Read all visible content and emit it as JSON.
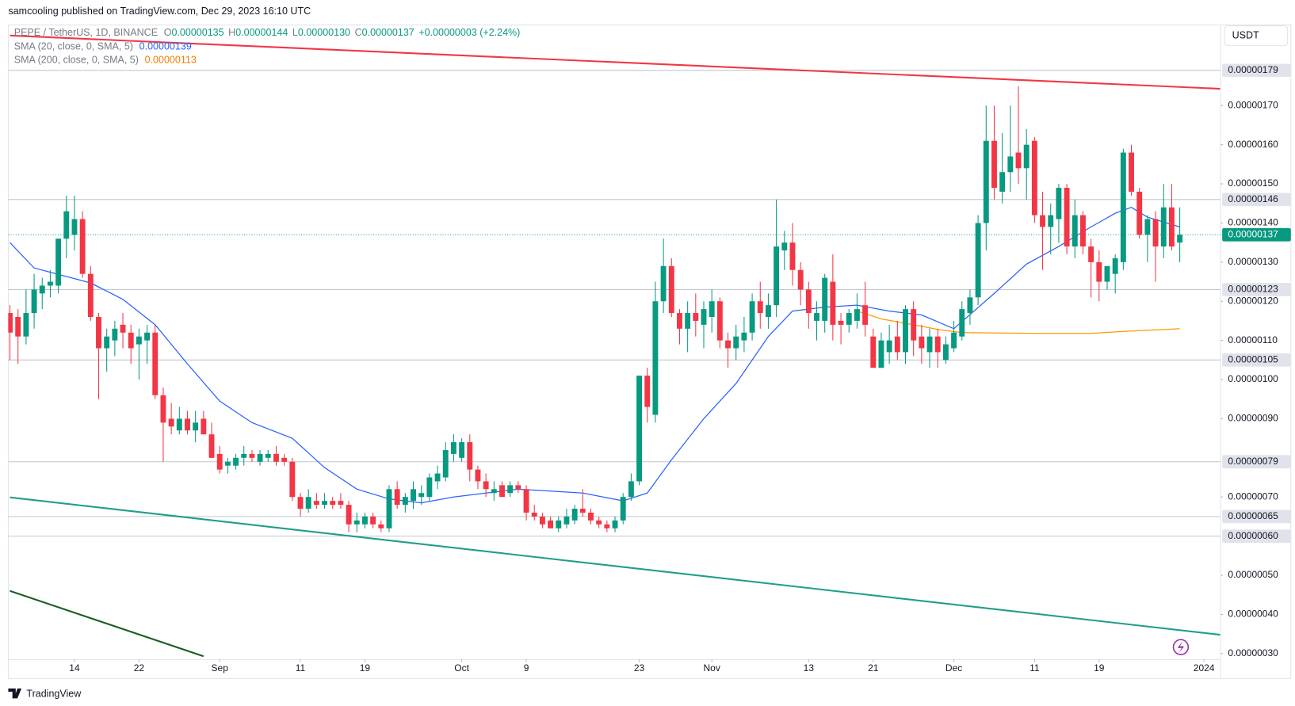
{
  "chart_data": {
    "type": "candlestick",
    "title": "samcooling published on TradingView.com, Dec 29, 2023 16:10 UTC",
    "legend": {
      "symbol": "PEPE / TetherUS, 1D, BINANCE",
      "ohlc": [
        {
          "label": "O",
          "value": "0.00000135"
        },
        {
          "label": "H",
          "value": "0.00000144"
        },
        {
          "label": "L",
          "value": "0.00000130"
        },
        {
          "label": "C",
          "value": "0.00000137"
        }
      ],
      "change": "+0.00000003 (+2.24%)"
    },
    "currency": "USDT",
    "brand": "TradingView",
    "up_color": "#089981",
    "down_color": "#f23645",
    "x": [
      "2023-08-06",
      "2023-08-07",
      "2023-08-08",
      "2023-08-09",
      "2023-08-10",
      "2023-08-11",
      "2023-08-12",
      "2023-08-13",
      "2023-08-14",
      "2023-08-15",
      "2023-08-16",
      "2023-08-17",
      "2023-08-18",
      "2023-08-19",
      "2023-08-20",
      "2023-08-21",
      "2023-08-22",
      "2023-08-23",
      "2023-08-24",
      "2023-08-25",
      "2023-08-26",
      "2023-08-27",
      "2023-08-28",
      "2023-08-29",
      "2023-08-30",
      "2023-08-31",
      "2023-09-01",
      "2023-09-02",
      "2023-09-03",
      "2023-09-04",
      "2023-09-05",
      "2023-09-06",
      "2023-09-07",
      "2023-09-08",
      "2023-09-09",
      "2023-09-10",
      "2023-09-11",
      "2023-09-12",
      "2023-09-13",
      "2023-09-14",
      "2023-09-15",
      "2023-09-16",
      "2023-09-17",
      "2023-09-18",
      "2023-09-19",
      "2023-09-20",
      "2023-09-21",
      "2023-09-22",
      "2023-09-23",
      "2023-09-24",
      "2023-09-25",
      "2023-09-26",
      "2023-09-27",
      "2023-09-28",
      "2023-09-29",
      "2023-09-30",
      "2023-10-01",
      "2023-10-02",
      "2023-10-03",
      "2023-10-04",
      "2023-10-05",
      "2023-10-06",
      "2023-10-07",
      "2023-10-08",
      "2023-10-09",
      "2023-10-10",
      "2023-10-11",
      "2023-10-12",
      "2023-10-13",
      "2023-10-14",
      "2023-10-15",
      "2023-10-16",
      "2023-10-17",
      "2023-10-18",
      "2023-10-19",
      "2023-10-20",
      "2023-10-21",
      "2023-10-22",
      "2023-10-23",
      "2023-10-24",
      "2023-10-25",
      "2023-10-26",
      "2023-10-27",
      "2023-10-28",
      "2023-10-29",
      "2023-10-30",
      "2023-10-31",
      "2023-11-01",
      "2023-11-02",
      "2023-11-03",
      "2023-11-04",
      "2023-11-05",
      "2023-11-06",
      "2023-11-07",
      "2023-11-08",
      "2023-11-09",
      "2023-11-10",
      "2023-11-11",
      "2023-11-12",
      "2023-11-13",
      "2023-11-14",
      "2023-11-15",
      "2023-11-16",
      "2023-11-17",
      "2023-11-18",
      "2023-11-19",
      "2023-11-20",
      "2023-11-21",
      "2023-11-22",
      "2023-11-23",
      "2023-11-24",
      "2023-11-25",
      "2023-11-26",
      "2023-11-27",
      "2023-11-28",
      "2023-11-29",
      "2023-11-30",
      "2023-12-01",
      "2023-12-02",
      "2023-12-03",
      "2023-12-04",
      "2023-12-05",
      "2023-12-06",
      "2023-12-07",
      "2023-12-08",
      "2023-12-09",
      "2023-12-10",
      "2023-12-11",
      "2023-12-12",
      "2023-12-13",
      "2023-12-14",
      "2023-12-15",
      "2023-12-16",
      "2023-12-17",
      "2023-12-18",
      "2023-12-19",
      "2023-12-20",
      "2023-12-21",
      "2023-12-22",
      "2023-12-23",
      "2023-12-24",
      "2023-12-25",
      "2023-12-26",
      "2023-12-27",
      "2023-12-28",
      "2023-12-29"
    ],
    "open": [
      1.17e-06,
      1.16e-06,
      1.11e-06,
      1.17e-06,
      1.22e-06,
      1.24e-06,
      1.24e-06,
      1.36e-06,
      1.37e-06,
      1.41e-06,
      1.27e-06,
      1.16e-06,
      1.08e-06,
      1.1e-06,
      1.14e-06,
      1.12e-06,
      1.09e-06,
      1.1e-06,
      1.12e-06,
      9.6e-07,
      9e-07,
      8.7e-07,
      9e-07,
      8.7e-07,
      9e-07,
      8.6e-07,
      8.1e-07,
      7.8e-07,
      7.8e-07,
      8e-07,
      8.1e-07,
      7.9e-07,
      8e-07,
      8.1e-07,
      8e-07,
      7.9e-07,
      7e-07,
      6.7e-07,
      6.9e-07,
      6.8e-07,
      6.9e-07,
      6.9e-07,
      6.8e-07,
      6.3e-07,
      6.3e-07,
      6.5e-07,
      6.3e-07,
      6.2e-07,
      7.2e-07,
      6.8e-07,
      6.9e-07,
      7e-07,
      7e-07,
      7.4e-07,
      7.5e-07,
      8.1e-07,
      8e-07,
      8.4e-07,
      7.7e-07,
      7.4e-07,
      7.1e-07,
      7.3e-07,
      7.1e-07,
      7.3e-07,
      7.2e-07,
      6.6e-07,
      6.5e-07,
      6.4e-07,
      6.2e-07,
      6.3e-07,
      6.4e-07,
      6.7e-07,
      6.6e-07,
      6.4e-07,
      6.3e-07,
      6.2e-07,
      6.4e-07,
      7e-07,
      7.4e-07,
      1.01e-06,
      9.1e-07,
      1.2e-06,
      1.29e-06,
      1.17e-06,
      1.13e-06,
      1.17e-06,
      1.14e-06,
      1.16e-06,
      1.2e-06,
      1.1e-06,
      1.08e-06,
      1.1e-06,
      1.12e-06,
      1.2e-06,
      1.16e-06,
      1.19e-06,
      1.33e-06,
      1.35e-06,
      1.28e-06,
      1.23e-06,
      1.15e-06,
      1.15e-06,
      1.25e-06,
      1.15e-06,
      1.14e-06,
      1.15e-06,
      1.19e-06,
      1.11e-06,
      1.03e-06,
      1.07e-06,
      1.11e-06,
      1.07e-06,
      1.18e-06,
      1.11e-06,
      1.07e-06,
      1.11e-06,
      1.05e-06,
      1.08e-06,
      1.11e-06,
      1.17e-06,
      1.21e-06,
      1.4e-06,
      1.61e-06,
      1.48e-06,
      1.53e-06,
      1.58e-06,
      1.54e-06,
      1.61e-06,
      1.42e-06,
      1.39e-06,
      1.41e-06,
      1.49e-06,
      1.34e-06,
      1.42e-06,
      1.34e-06,
      1.3e-06,
      1.25e-06,
      1.27e-06,
      1.3e-06,
      1.58e-06,
      1.48e-06,
      1.37e-06,
      1.41e-06,
      1.34e-06,
      1.44e-06,
      1.35e-06
    ],
    "high": [
      1.19e-06,
      1.18e-06,
      1.23e-06,
      1.27e-06,
      1.26e-06,
      1.28e-06,
      1.36e-06,
      1.47e-06,
      1.47e-06,
      1.43e-06,
      1.29e-06,
      1.17e-06,
      1.13e-06,
      1.15e-06,
      1.17e-06,
      1.14e-06,
      1.13e-06,
      1.14e-06,
      1.14e-06,
      9.8e-07,
      9.4e-07,
      9.3e-07,
      9.2e-07,
      9.2e-07,
      9.2e-07,
      8.9e-07,
      8.3e-07,
      8e-07,
      8.1e-07,
      8.3e-07,
      8.2e-07,
      8.2e-07,
      8.2e-07,
      8.3e-07,
      8.1e-07,
      8e-07,
      7.1e-07,
      7.2e-07,
      7.1e-07,
      7.1e-07,
      7e-07,
      7.1e-07,
      6.9e-07,
      6.6e-07,
      6.6e-07,
      6.6e-07,
      6.4e-07,
      7.3e-07,
      7.4e-07,
      7.1e-07,
      7.4e-07,
      7.3e-07,
      7.6e-07,
      7.8e-07,
      8.4e-07,
      8.6e-07,
      8.5e-07,
      8.6e-07,
      7.8e-07,
      7.6e-07,
      7.4e-07,
      7.4e-07,
      7.4e-07,
      7.4e-07,
      7.3e-07,
      6.8e-07,
      6.6e-07,
      6.5e-07,
      6.5e-07,
      6.7e-07,
      6.8e-07,
      7.2e-07,
      6.7e-07,
      6.5e-07,
      6.4e-07,
      6.5e-07,
      7.1e-07,
      7.6e-07,
      1.01e-06,
      1.03e-06,
      1.25e-06,
      1.36e-06,
      1.31e-06,
      1.18e-06,
      1.2e-06,
      1.22e-06,
      1.2e-06,
      1.23e-06,
      1.21e-06,
      1.12e-06,
      1.14e-06,
      1.16e-06,
      1.22e-06,
      1.25e-06,
      1.22e-06,
      1.46e-06,
      1.38e-06,
      1.4e-06,
      1.3e-06,
      1.25e-06,
      1.2e-06,
      1.27e-06,
      1.32e-06,
      1.17e-06,
      1.18e-06,
      1.22e-06,
      1.25e-06,
      1.13e-06,
      1.12e-06,
      1.14e-06,
      1.15e-06,
      1.19e-06,
      1.2e-06,
      1.14e-06,
      1.13e-06,
      1.13e-06,
      1.11e-06,
      1.15e-06,
      1.2e-06,
      1.23e-06,
      1.42e-06,
      1.7e-06,
      1.7e-06,
      1.63e-06,
      1.7e-06,
      1.75e-06,
      1.64e-06,
      1.62e-06,
      1.48e-06,
      1.45e-06,
      1.5e-06,
      1.5e-06,
      1.46e-06,
      1.43e-06,
      1.36e-06,
      1.33e-06,
      1.29e-06,
      1.32e-06,
      1.59e-06,
      1.6e-06,
      1.49e-06,
      1.42e-06,
      1.43e-06,
      1.5e-06,
      1.5e-06,
      1.44e-06
    ],
    "low": [
      1.05e-06,
      1.04e-06,
      1.09e-06,
      1.13e-06,
      1.18e-06,
      1.21e-06,
      1.22e-06,
      1.31e-06,
      1.33e-06,
      1.26e-06,
      1.15e-06,
      9.5e-07,
      1.02e-06,
      1.06e-06,
      1.08e-06,
      1.04e-06,
      1e-06,
      1.04e-06,
      9.5e-07,
      7.9e-07,
      8.6e-07,
      8.6e-07,
      8.6e-07,
      8.4e-07,
      8.6e-07,
      8e-07,
      7.6e-07,
      7.6e-07,
      7.7e-07,
      7.8e-07,
      7.9e-07,
      7.8e-07,
      7.9e-07,
      7.8e-07,
      7.8e-07,
      6.9e-07,
      6.5e-07,
      6.6e-07,
      6.7e-07,
      6.7e-07,
      6.7e-07,
      6.7e-07,
      6.1e-07,
      6.1e-07,
      6.2e-07,
      6.2e-07,
      6.1e-07,
      6.1e-07,
      6.7e-07,
      6.6e-07,
      6.7e-07,
      6.8e-07,
      6.9e-07,
      7.2e-07,
      7.4e-07,
      7.9e-07,
      7.9e-07,
      7.4e-07,
      7.2e-07,
      7e-07,
      6.9e-07,
      7e-07,
      7e-07,
      7.1e-07,
      6.4e-07,
      6.4e-07,
      6.2e-07,
      6.2e-07,
      6.1e-07,
      6.2e-07,
      6.3e-07,
      6.5e-07,
      6.3e-07,
      6.2e-07,
      6.1e-07,
      6.1e-07,
      6.3e-07,
      6.9e-07,
      7.3e-07,
      8.9e-07,
      8.9e-07,
      1.17e-06,
      1.16e-06,
      1.09e-06,
      1.07e-06,
      1.11e-06,
      1.08e-06,
      1.12e-06,
      1.08e-06,
      1.03e-06,
      1.05e-06,
      1.07e-06,
      1.1e-06,
      1.13e-06,
      1.13e-06,
      1.16e-06,
      1.28e-06,
      1.24e-06,
      1.19e-06,
      1.13e-06,
      1.1e-06,
      1.12e-06,
      1.1e-06,
      1.09e-06,
      1.12e-06,
      1.13e-06,
      1.11e-06,
      1.03e-06,
      1.03e-06,
      1.04e-06,
      1.05e-06,
      1.04e-06,
      1.06e-06,
      1.04e-06,
      1.03e-06,
      1.03e-06,
      1.04e-06,
      1.07e-06,
      1.1e-06,
      1.14e-06,
      1.19e-06,
      1.33e-06,
      1.46e-06,
      1.45e-06,
      1.48e-06,
      1.5e-06,
      1.46e-06,
      1.4e-06,
      1.28e-06,
      1.32e-06,
      1.35e-06,
      1.32e-06,
      1.31e-06,
      1.32e-06,
      1.21e-06,
      1.2e-06,
      1.23e-06,
      1.22e-06,
      1.28e-06,
      1.47e-06,
      1.36e-06,
      1.3e-06,
      1.25e-06,
      1.31e-06,
      1.33e-06,
      1.3e-06
    ],
    "close": [
      1.12e-06,
      1.11e-06,
      1.17e-06,
      1.23e-06,
      1.24e-06,
      1.25e-06,
      1.36e-06,
      1.43e-06,
      1.41e-06,
      1.27e-06,
      1.16e-06,
      1.08e-06,
      1.11e-06,
      1.13e-06,
      1.12e-06,
      1.08e-06,
      1.11e-06,
      1.12e-06,
      9.6e-07,
      8.9e-07,
      8.8e-07,
      9e-07,
      8.7e-07,
      8.9e-07,
      8.6e-07,
      8e-07,
      7.7e-07,
      7.9e-07,
      8e-07,
      8.1e-07,
      8e-07,
      8.1e-07,
      8.1e-07,
      7.9e-07,
      7.9e-07,
      7e-07,
      6.7e-07,
      7e-07,
      6.8e-07,
      6.9e-07,
      6.8e-07,
      6.8e-07,
      6.3e-07,
      6.4e-07,
      6.5e-07,
      6.3e-07,
      6.2e-07,
      7.2e-07,
      6.8e-07,
      7e-07,
      7.2e-07,
      7.1e-07,
      7.5e-07,
      7.6e-07,
      8.2e-07,
      8.4e-07,
      8.4e-07,
      7.7e-07,
      7.4e-07,
      7.2e-07,
      7.2e-07,
      7e-07,
      7.3e-07,
      7.2e-07,
      6.6e-07,
      6.5e-07,
      6.3e-07,
      6.2e-07,
      6.4e-07,
      6.5e-07,
      6.7e-07,
      6.6e-07,
      6.4e-07,
      6.3e-07,
      6.2e-07,
      6.4e-07,
      7e-07,
      7.4e-07,
      1.01e-06,
      9.3e-07,
      1.2e-06,
      1.29e-06,
      1.17e-06,
      1.13e-06,
      1.17e-06,
      1.15e-06,
      1.18e-06,
      1.2e-06,
      1.1e-06,
      1.08e-06,
      1.11e-06,
      1.12e-06,
      1.2e-06,
      1.17e-06,
      1.19e-06,
      1.34e-06,
      1.35e-06,
      1.28e-06,
      1.23e-06,
      1.17e-06,
      1.17e-06,
      1.26e-06,
      1.14e-06,
      1.14e-06,
      1.17e-06,
      1.18e-06,
      1.14e-06,
      1.03e-06,
      1.1e-06,
      1.1e-06,
      1.07e-06,
      1.18e-06,
      1.1e-06,
      1.08e-06,
      1.11e-06,
      1.07e-06,
      1.09e-06,
      1.12e-06,
      1.18e-06,
      1.21e-06,
      1.4e-06,
      1.61e-06,
      1.49e-06,
      1.53e-06,
      1.57e-06,
      1.54e-06,
      1.6e-06,
      1.42e-06,
      1.39e-06,
      1.42e-06,
      1.49e-06,
      1.34e-06,
      1.42e-06,
      1.34e-06,
      1.3e-06,
      1.25e-06,
      1.29e-06,
      1.31e-06,
      1.58e-06,
      1.48e-06,
      1.37e-06,
      1.41e-06,
      1.34e-06,
      1.44e-06,
      1.34e-06,
      1.37e-06
    ],
    "indicators": [
      {
        "name": "SMA (20, close, 0, SMA, 5)",
        "color": "#2962ff",
        "value_label": "0.00000139",
        "x": [
          "2023-08-06",
          "2023-08-09",
          "2023-08-16",
          "2023-08-20",
          "2023-08-24",
          "2023-08-28",
          "2023-09-01",
          "2023-09-05",
          "2023-09-10",
          "2023-09-14",
          "2023-09-18",
          "2023-09-22",
          "2023-09-26",
          "2023-09-30",
          "2023-10-04",
          "2023-10-08",
          "2023-10-12",
          "2023-10-16",
          "2023-10-21",
          "2023-10-24",
          "2023-10-27",
          "2023-10-31",
          "2023-11-04",
          "2023-11-08",
          "2023-11-11",
          "2023-11-15",
          "2023-11-19",
          "2023-11-23",
          "2023-11-27",
          "2023-12-01",
          "2023-12-06",
          "2023-12-10",
          "2023-12-14",
          "2023-12-18",
          "2023-12-21",
          "2023-12-23",
          "2023-12-25",
          "2023-12-29"
        ],
        "values": [
          1.35e-06,
          1.285e-06,
          1.247e-06,
          1.205e-06,
          1.14e-06,
          1.04e-06,
          9.45e-07,
          8.9e-07,
          8.5e-07,
          7.75e-07,
          7.2e-07,
          6.95e-07,
          6.85e-07,
          7e-07,
          7.1e-07,
          7.2e-07,
          7.15e-07,
          7.1e-07,
          6.9e-07,
          7.1e-07,
          7.95e-07,
          9e-07,
          9.9e-07,
          1.11e-06,
          1.175e-06,
          1.185e-06,
          1.19e-06,
          1.175e-06,
          1.165e-06,
          1.13e-06,
          1.22e-06,
          1.295e-06,
          1.34e-06,
          1.39e-06,
          1.425e-06,
          1.44e-06,
          1.415e-06,
          1.39e-06
        ]
      },
      {
        "name": "SMA (200, close, 0, SMA, 5)",
        "color": "#ff9800",
        "value_label": "0.00000113",
        "x": [
          "2023-11-19",
          "2023-11-22",
          "2023-11-26",
          "2023-11-29",
          "2023-12-02",
          "2023-12-11",
          "2023-12-18",
          "2023-12-22",
          "2023-12-29"
        ],
        "values": [
          1.175e-06,
          1.155e-06,
          1.14e-06,
          1.128e-06,
          1.12e-06,
          1.118e-06,
          1.118e-06,
          1.123e-06,
          1.13e-06
        ]
      }
    ],
    "trendlines": [
      {
        "color": "#f23645",
        "x": [
          "2023-08-06",
          "2024-01-03"
        ],
        "values": [
          1.879e-06,
          1.743e-06
        ]
      },
      {
        "color": "#1f9e89",
        "x": [
          "2023-08-06",
          "2024-01-03"
        ],
        "values": [
          6.99e-07,
          3.48e-07
        ]
      },
      {
        "color": "#1b5e20",
        "x": [
          "2023-08-06",
          "2023-08-30"
        ],
        "values": [
          4.6e-07,
          2.93e-07
        ]
      }
    ],
    "price_levels": [
      {
        "value": 1.79e-06,
        "label": "0.00000179"
      },
      {
        "value": 1.46e-06,
        "label": "0.00000146"
      },
      {
        "value": 1.23e-06,
        "label": "0.00000123"
      },
      {
        "value": 1.05e-06,
        "label": "0.00000105"
      },
      {
        "value": 7.9e-07,
        "label": "0.00000079"
      },
      {
        "value": 6.5e-07,
        "label": "0.00000065"
      },
      {
        "value": 6e-07,
        "label": "0.00000060"
      }
    ],
    "last_price": {
      "value": 1.37e-06,
      "label": "0.00000137"
    },
    "xlim": [
      "2023-08-06",
      "2024-01-03"
    ],
    "xticks": [
      {
        "value": "2023-08-14",
        "label": "14"
      },
      {
        "value": "2023-08-22",
        "label": "22"
      },
      {
        "value": "2023-09-01",
        "label": "Sep"
      },
      {
        "value": "2023-09-11",
        "label": "11"
      },
      {
        "value": "2023-09-19",
        "label": "19"
      },
      {
        "value": "2023-10-01",
        "label": "Oct"
      },
      {
        "value": "2023-10-09",
        "label": "9"
      },
      {
        "value": "2023-10-23",
        "label": "23"
      },
      {
        "value": "2023-11-01",
        "label": "Nov"
      },
      {
        "value": "2023-11-13",
        "label": "13"
      },
      {
        "value": "2023-11-21",
        "label": "21"
      },
      {
        "value": "2023-12-01",
        "label": "Dec"
      },
      {
        "value": "2023-12-11",
        "label": "11"
      },
      {
        "value": "2023-12-19",
        "label": "19"
      },
      {
        "value": "2024-01-01",
        "label": "2024"
      }
    ],
    "ylim": [
      2.847e-07,
      1.906e-06
    ],
    "yticks": [
      {
        "value": 1.7e-06,
        "label": "0.00000170"
      },
      {
        "value": 1.6e-06,
        "label": "0.00000160"
      },
      {
        "value": 1.5e-06,
        "label": "0.00000150"
      },
      {
        "value": 1.4e-06,
        "label": "0.00000140"
      },
      {
        "value": 1.3e-06,
        "label": "0.00000130"
      },
      {
        "value": 1.2e-06,
        "label": "0.00000120"
      },
      {
        "value": 1.1e-06,
        "label": "0.00000110"
      },
      {
        "value": 1e-06,
        "label": "0.00000100"
      },
      {
        "value": 9e-07,
        "label": "0.00000090"
      },
      {
        "value": 7e-07,
        "label": "0.00000070"
      },
      {
        "value": 5e-07,
        "label": "0.00000050"
      },
      {
        "value": 4e-07,
        "label": "0.00000040"
      },
      {
        "value": 3e-07,
        "label": "0.00000030"
      }
    ],
    "grid": false
  }
}
